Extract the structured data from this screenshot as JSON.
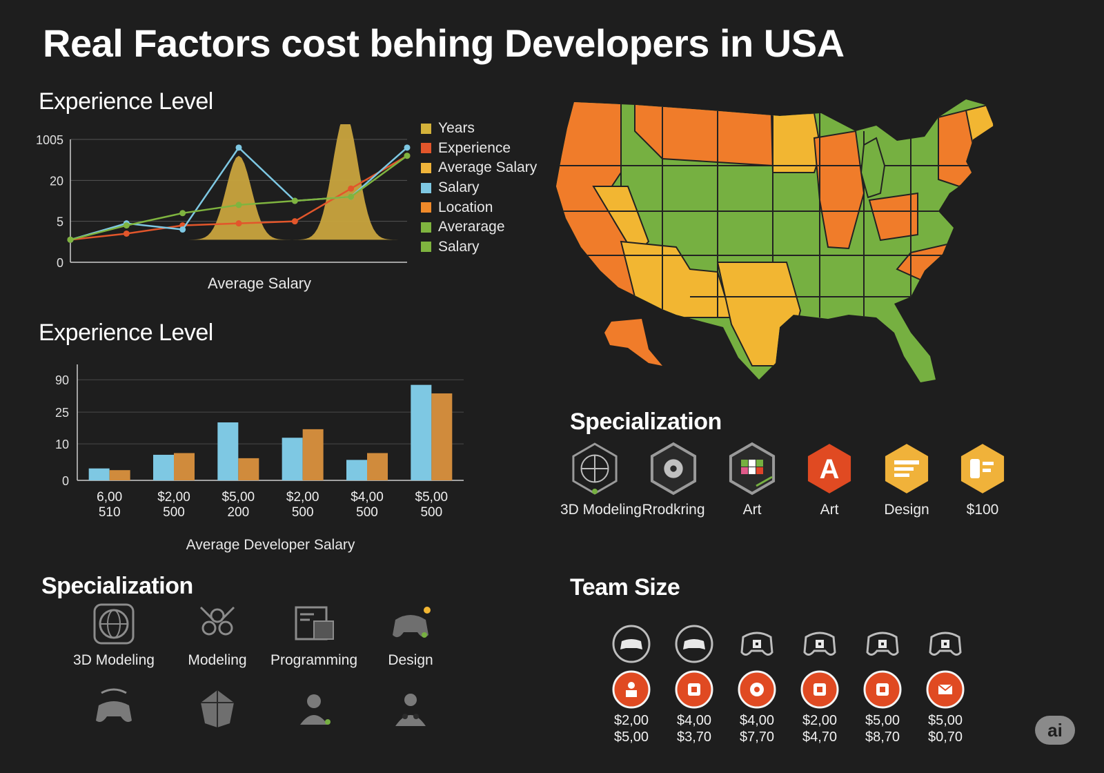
{
  "title": "Real Factors cost behing Developers in USA",
  "colors": {
    "background": "#1e1e1e",
    "orange": "#f07c2a",
    "yellow": "#f2b632",
    "green": "#76b041",
    "blue": "#7ec8e3",
    "bar_orange": "#d08b3c",
    "red": "#e0442a"
  },
  "line_section": {
    "title": "Experience Level"
  },
  "bar_section": {
    "title": "Experience Level"
  },
  "legend": [
    {
      "label": "Years",
      "color": "#d4b23a"
    },
    {
      "label": "Experience",
      "color": "#e2562b"
    },
    {
      "label": "Average Salary",
      "color": "#f0b43a"
    },
    {
      "label": "Salary",
      "color": "#7ec8e3"
    },
    {
      "label": "Location",
      "color": "#f08a2a"
    },
    {
      "label": "Averarage",
      "color": "#7fb43f"
    },
    {
      "label": "Salary",
      "color": "#7fb43f"
    }
  ],
  "chart_data": [
    {
      "type": "line",
      "title": "Experience Level",
      "xlabel": "Average Salary",
      "ylabel": "",
      "ytick_labels": [
        "0",
        "5",
        "20",
        "1005"
      ],
      "ylim": [
        0,
        3
      ],
      "grid": true,
      "legend_placement": "right",
      "x": [
        0,
        1,
        2,
        3,
        4,
        5,
        6
      ],
      "series": [
        {
          "name": "Years",
          "type": "area",
          "color": "#c9a43e",
          "values": [
            0.55,
            0.55,
            0.55,
            0.55,
            0.55,
            0.55,
            0.55
          ]
        },
        {
          "name": "Experience",
          "color": "#e2562b",
          "values": [
            0.55,
            0.7,
            0.9,
            0.95,
            1.0,
            1.8,
            2.6
          ]
        },
        {
          "name": "Salary",
          "color": "#7ec8e3",
          "values": [
            0.55,
            0.95,
            0.8,
            2.8,
            1.5,
            1.6,
            2.8
          ]
        },
        {
          "name": "Averarage",
          "color": "#7fb43f",
          "values": [
            0.55,
            0.9,
            1.2,
            1.4,
            1.5,
            1.6,
            2.6
          ]
        }
      ],
      "area_peaks": [
        {
          "x": 3.0,
          "height": 2.6
        },
        {
          "x": 4.9,
          "height": 3.6
        }
      ]
    },
    {
      "type": "bar",
      "title": "Experience Level",
      "xlabel": "Average Developer Salary",
      "ylabel": "",
      "ytick_labels": [
        "0",
        "10",
        "25",
        "90"
      ],
      "ylim": [
        0,
        3.4
      ],
      "grid": true,
      "categories": [
        [
          "6,00",
          "510"
        ],
        [
          "$2,00",
          "500"
        ],
        [
          "$5,00",
          "200"
        ],
        [
          "$2,00",
          "500"
        ],
        [
          "$4,00",
          "500"
        ],
        [
          "$5,00",
          "500"
        ]
      ],
      "series": [
        {
          "color": "#7ec8e3",
          "values": [
            0.35,
            0.75,
            1.7,
            1.25,
            0.6,
            2.8
          ]
        },
        {
          "color": "#d08b3c",
          "values": [
            0.3,
            0.8,
            0.65,
            1.5,
            0.8,
            2.55
          ]
        }
      ]
    }
  ],
  "map": {
    "legend_colors": [
      "#f07c2a",
      "#f2b632",
      "#76b041"
    ]
  },
  "spec_right": {
    "title": "Specialization",
    "items": [
      {
        "label": "3D Modeling",
        "icon": "wireframe-globe-icon"
      },
      {
        "label": "Rrodkring",
        "icon": "shell-pattern-icon"
      },
      {
        "label": "Art",
        "icon": "pixel-grid-icon"
      },
      {
        "label": "Art",
        "icon": "letter-a-icon"
      },
      {
        "label": "Design",
        "icon": "layout-document-icon"
      },
      {
        "label": "$100",
        "icon": "device-card-icon"
      }
    ]
  },
  "spec_left": {
    "title": "Specialization",
    "items": [
      {
        "label": "3D Modeling",
        "icon": "globe-icon"
      },
      {
        "label": "Modeling",
        "icon": "network-nodes-icon"
      },
      {
        "label": "Programming",
        "icon": "code-window-icon"
      },
      {
        "label": "Design",
        "icon": "gamepad-icon"
      },
      {
        "label": "",
        "icon": "controller-icon"
      },
      {
        "label": "",
        "icon": "shield-mesh-icon"
      },
      {
        "label": "",
        "icon": "user-icon"
      },
      {
        "label": "",
        "icon": "team-icon"
      }
    ]
  },
  "team": {
    "title": "Team Size",
    "items": [
      {
        "top_icon": "controller-icon",
        "badge_icon": "person-icon",
        "price1": "$2,00",
        "price2": "$5,00"
      },
      {
        "top_icon": "controller-icon",
        "badge_icon": "calendar-icon",
        "price1": "$4,00",
        "price2": "$3,70"
      },
      {
        "top_icon": "gamepad-icon",
        "badge_icon": "gear-icon",
        "price1": "$4,00",
        "price2": "$7,70"
      },
      {
        "top_icon": "gamepad-icon",
        "badge_icon": "chip-icon",
        "price1": "$2,00",
        "price2": "$4,70"
      },
      {
        "top_icon": "gamepad-icon",
        "badge_icon": "map-icon",
        "price1": "$5,00",
        "price2": "$8,70"
      },
      {
        "top_icon": "gamepad-icon",
        "badge_icon": "mail-icon",
        "price1": "$5,00",
        "price2": "$0,70"
      }
    ]
  },
  "badge": {
    "label": "ai"
  }
}
